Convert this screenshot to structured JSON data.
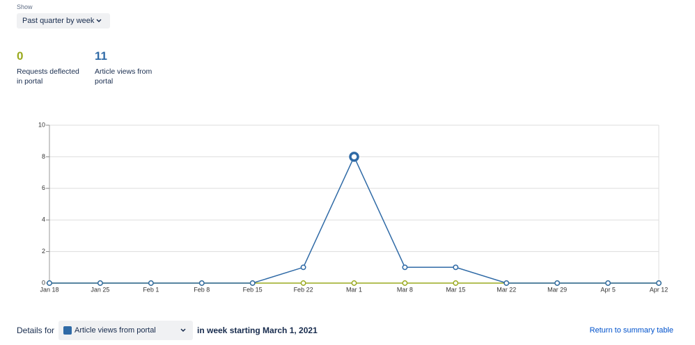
{
  "show_label": "Show",
  "period": "Past quarter by week",
  "stats": [
    0,
    11
  ],
  "chart_data": {
    "type": "line",
    "categories": [
      "Jan 18",
      "Jan 25",
      "Feb 1",
      "Feb 8",
      "Feb 15",
      "Feb 22",
      "Mar 1",
      "Mar 8",
      "Mar 15",
      "Mar 22",
      "Mar 29",
      "Apr 5",
      "Apr 12"
    ],
    "series": [
      {
        "name": "Requests deflected in portal",
        "color": "#9aaa1e",
        "values": [
          0,
          0,
          0,
          0,
          0,
          0,
          0,
          0,
          0,
          0,
          0,
          0,
          0
        ]
      },
      {
        "name": "Article views from portal",
        "color": "#2f6aa6",
        "values": [
          0,
          0,
          0,
          0,
          0,
          1,
          8,
          1,
          1,
          0,
          0,
          0,
          0
        ]
      }
    ],
    "ylim": [
      0,
      10
    ],
    "yticks": [
      0,
      2,
      4,
      6,
      8,
      10
    ],
    "grid": true,
    "selected": {
      "series": 1,
      "index": 6
    }
  },
  "details": {
    "prefix": "Details for",
    "suffix": "in week starting March 1, 2021",
    "link": "Return to summary table"
  }
}
